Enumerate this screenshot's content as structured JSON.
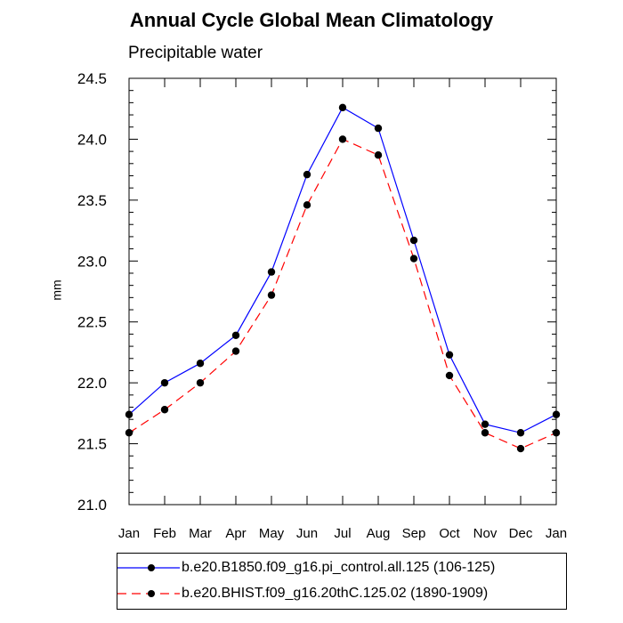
{
  "chart_data": {
    "type": "line",
    "title": "Annual Cycle Global Mean Climatology",
    "subtitle": "Precipitable water",
    "xlabel": "",
    "ylabel": "mm",
    "categories": [
      "Jan",
      "Feb",
      "Mar",
      "Apr",
      "May",
      "Jun",
      "Jul",
      "Aug",
      "Sep",
      "Oct",
      "Nov",
      "Dec",
      "Jan"
    ],
    "ylim": [
      21.0,
      24.5
    ],
    "yticks": [
      "21.0",
      "21.5",
      "22.0",
      "22.5",
      "23.0",
      "23.5",
      "24.0",
      "24.5"
    ],
    "grid": false,
    "legend_position": "bottom",
    "series": [
      {
        "name": "b.e20.B1850.f09_g16.pi_control.all.125 (106-125)",
        "color": "#0000ff",
        "line_style": "solid",
        "values": [
          21.74,
          22.0,
          22.16,
          22.39,
          22.91,
          23.71,
          24.26,
          24.09,
          23.17,
          22.23,
          21.66,
          21.59,
          21.74
        ]
      },
      {
        "name": "b.e20.BHIST.f09_g16.20thC.125.02 (1890-1909)",
        "color": "#ff0000",
        "line_style": "dashed",
        "values": [
          21.59,
          21.78,
          22.0,
          22.26,
          22.72,
          23.46,
          24.0,
          23.87,
          23.02,
          22.06,
          21.59,
          21.46,
          21.59
        ]
      }
    ]
  }
}
